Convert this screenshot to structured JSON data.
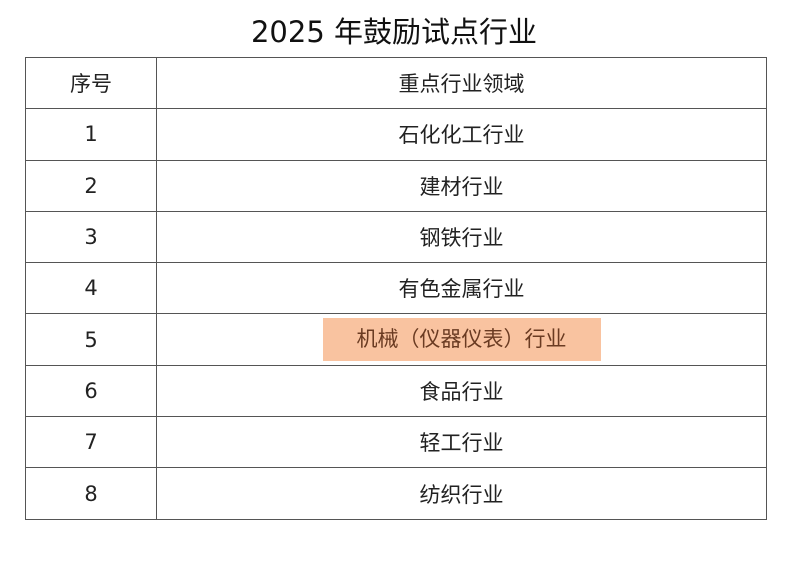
{
  "title": "2025 年鼓励试点行业",
  "table": {
    "headers": [
      "序号",
      "重点行业领域"
    ],
    "rows": [
      {
        "no": "1",
        "field": "石化化工行业",
        "highlighted": false
      },
      {
        "no": "2",
        "field": "建材行业",
        "highlighted": false
      },
      {
        "no": "3",
        "field": "钢铁行业",
        "highlighted": false
      },
      {
        "no": "4",
        "field": "有色金属行业",
        "highlighted": false
      },
      {
        "no": "5",
        "field": "机械（仪器仪表）行业",
        "highlighted": true
      },
      {
        "no": "6",
        "field": "食品行业",
        "highlighted": false
      },
      {
        "no": "7",
        "field": "轻工行业",
        "highlighted": false
      },
      {
        "no": "8",
        "field": "纺织行业",
        "highlighted": false
      }
    ]
  },
  "colors": {
    "highlight": "#f9c3a0",
    "highlight_text": "#6a3b22"
  }
}
